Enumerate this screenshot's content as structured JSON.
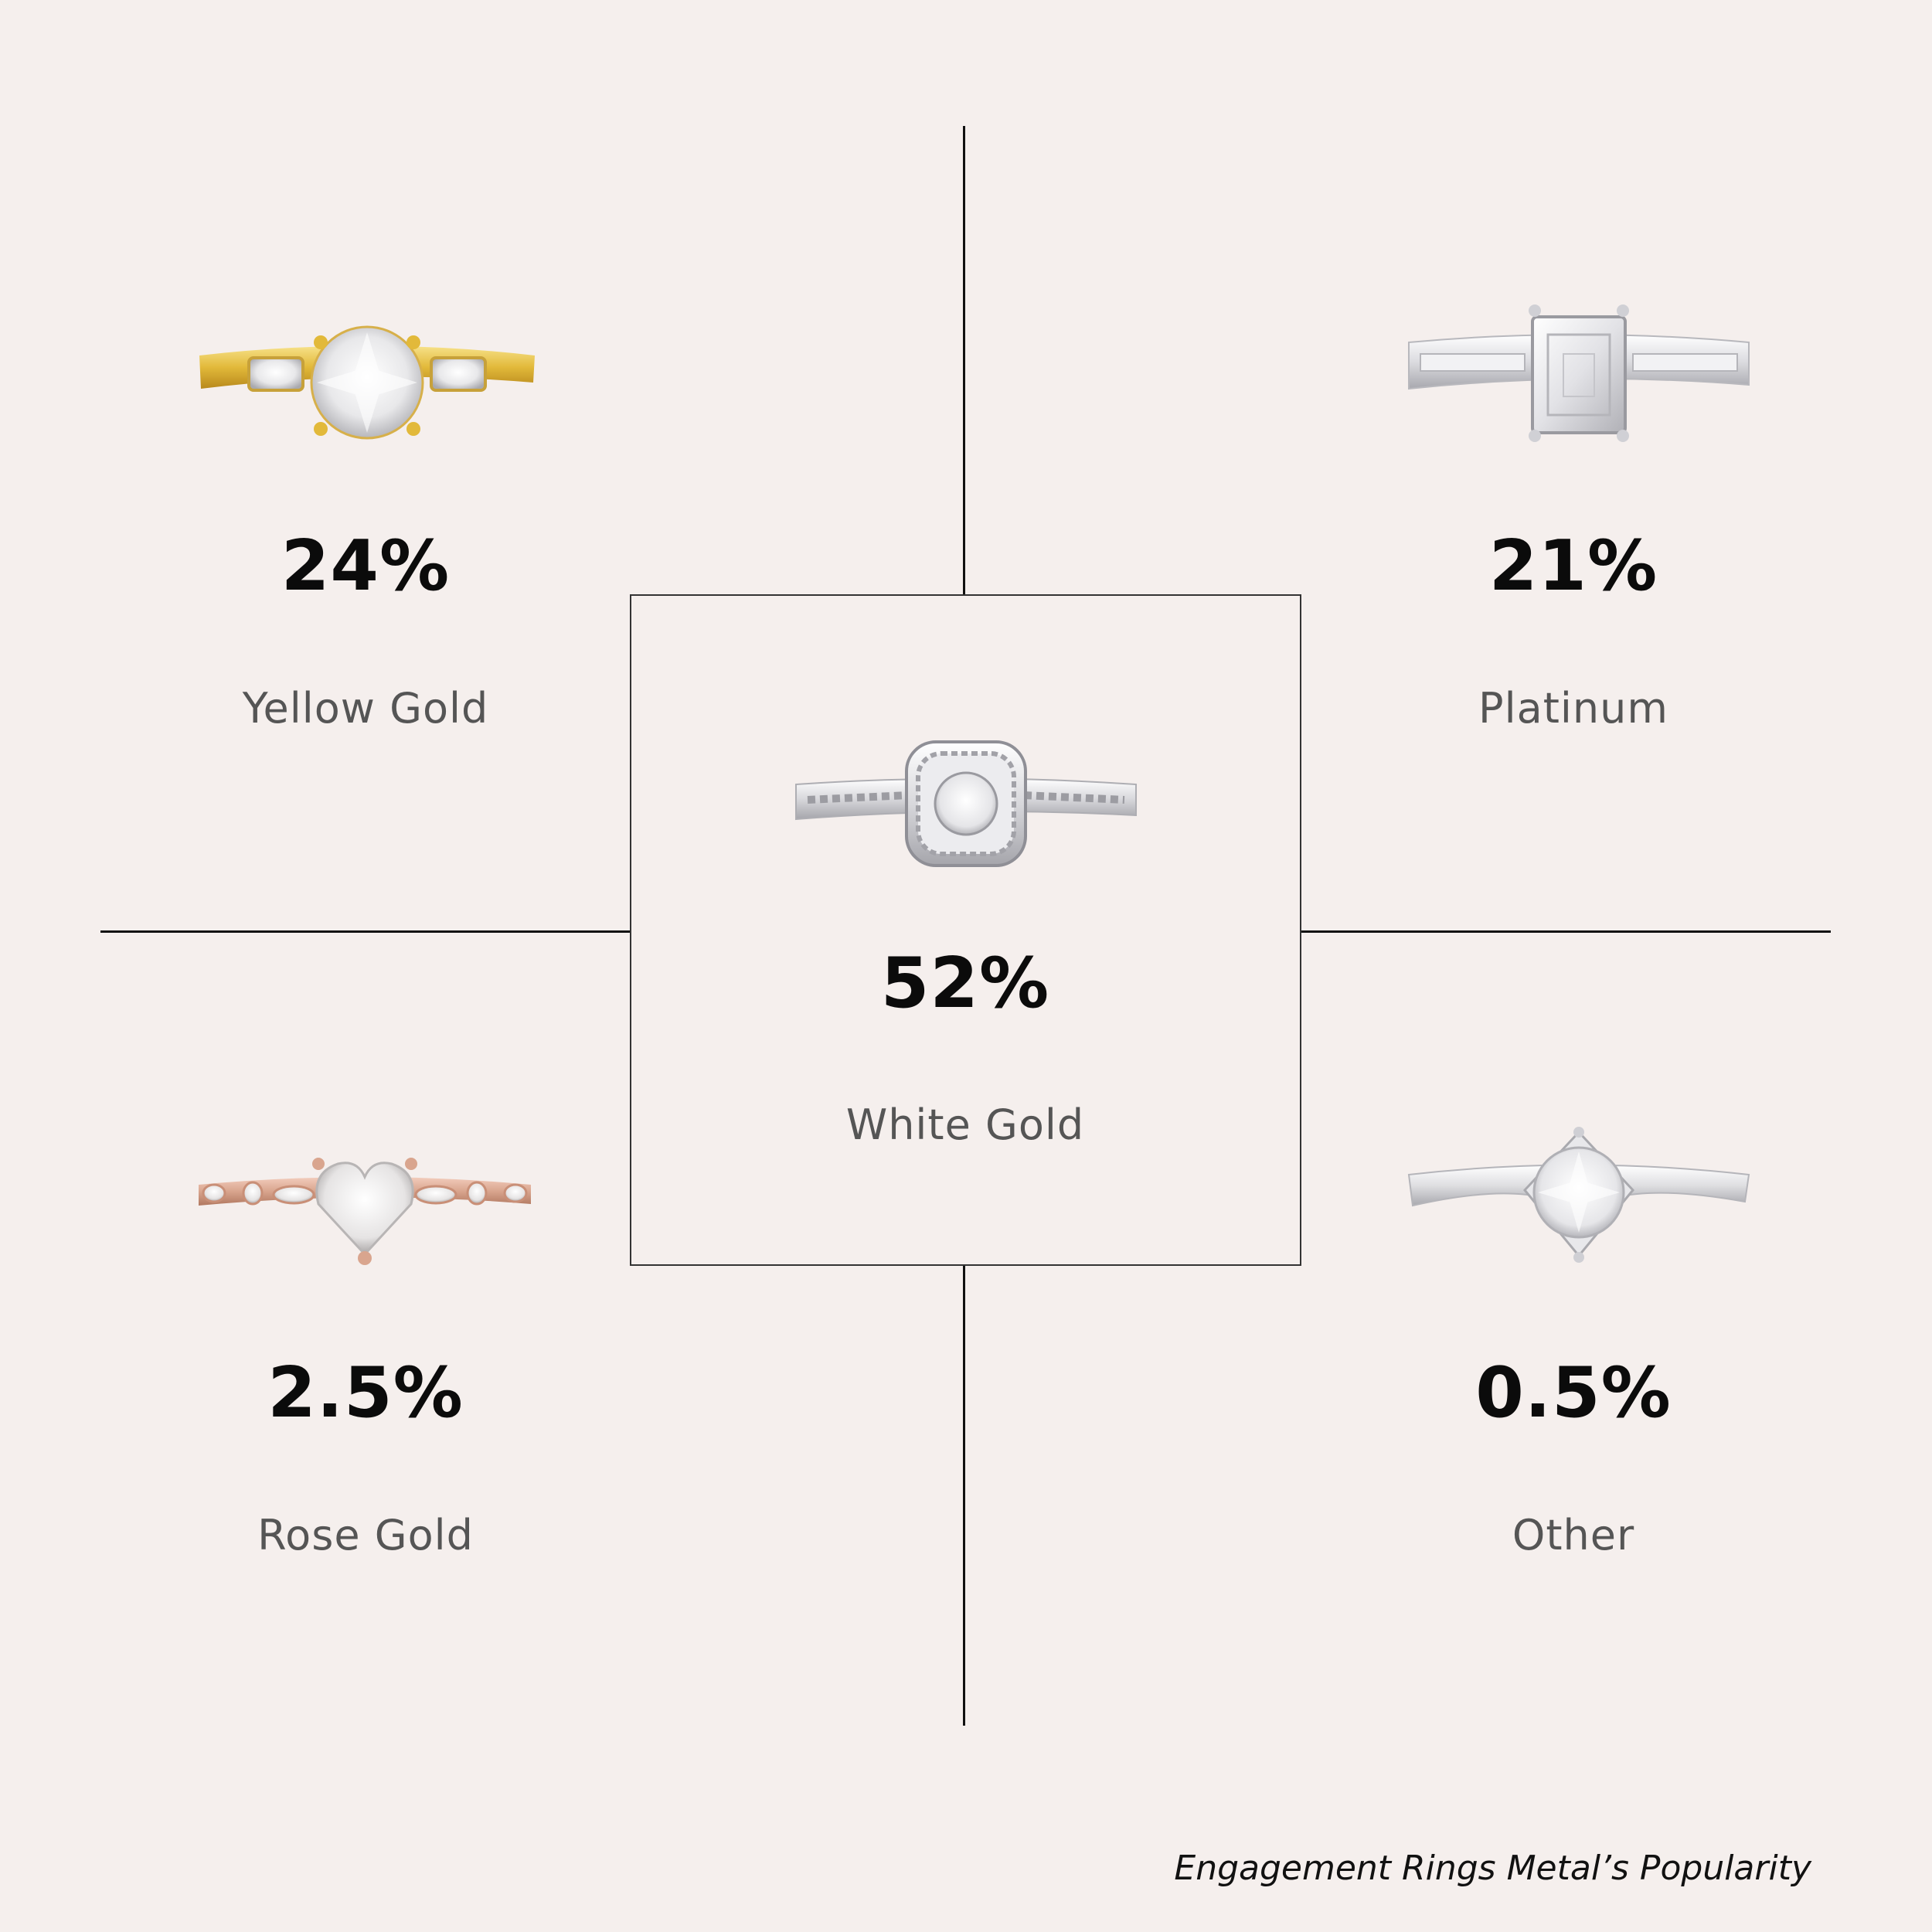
{
  "segments": {
    "yellow_gold": {
      "percent": "24%",
      "label": "Yellow Gold",
      "metal_color": "#e8c54a"
    },
    "platinum": {
      "percent": "21%",
      "label": "Platinum",
      "metal_color": "#e4e4e6"
    },
    "white_gold": {
      "percent": "52%",
      "label": "White Gold",
      "metal_color": "#dcdcde"
    },
    "rose_gold": {
      "percent": "2.5%",
      "label": "Rose Gold",
      "metal_color": "#d9a58e"
    },
    "other": {
      "percent": "0.5%",
      "label": "Other",
      "metal_color": "#e6e6e8"
    }
  },
  "caption": "Engagement Rings Metal’s Popularity",
  "colors": {
    "background": "#f5efed",
    "lines": "#111111",
    "percent_text": "#0b0b0b",
    "label_text": "#555555"
  }
}
